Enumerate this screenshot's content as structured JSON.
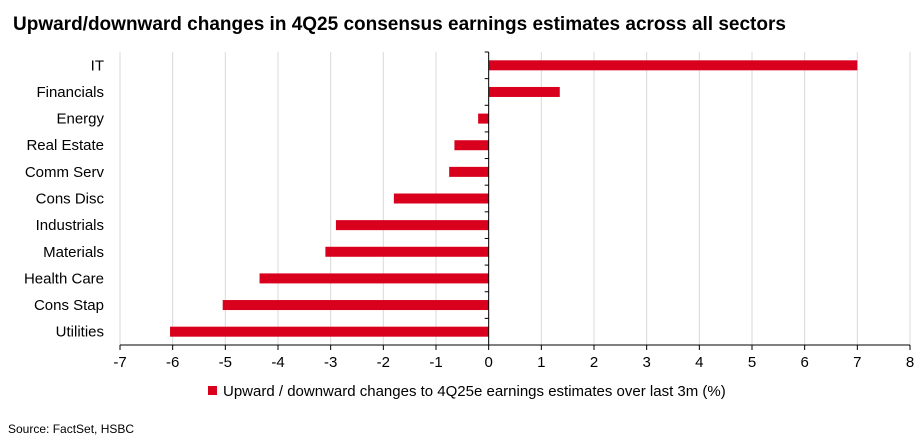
{
  "title": "Upward/downward changes in 4Q25 consensus earnings estimates across all sectors",
  "source": "Source: FactSet, HSBC",
  "colors": {
    "bar": "#d8001c",
    "grid": "#d9d9d9",
    "axis": "#000000"
  },
  "chart_data": {
    "type": "bar",
    "orientation": "horizontal",
    "title": "Upward/downward changes in 4Q25 consensus earnings estimates across all sectors",
    "categories": [
      "IT",
      "Financials",
      "Energy",
      "Real Estate",
      "Comm Serv",
      "Cons Disc",
      "Industrials",
      "Materials",
      "Health Care",
      "Cons Stap",
      "Utilities"
    ],
    "series": [
      {
        "name": "Upward / downward changes to 4Q25e earnings estimates over last 3m (%)",
        "values": [
          7.0,
          1.35,
          -0.2,
          -0.65,
          -0.75,
          -1.8,
          -2.9,
          -3.1,
          -4.35,
          -5.05,
          -6.05
        ]
      }
    ],
    "xlim": [
      -7,
      8
    ],
    "xticks": [
      -7,
      -6,
      -5,
      -4,
      -3,
      -2,
      -1,
      0,
      1,
      2,
      3,
      4,
      5,
      6,
      7,
      8
    ],
    "xlabel": "",
    "ylabel": "",
    "grid": "vertical",
    "legend": "bottom"
  }
}
